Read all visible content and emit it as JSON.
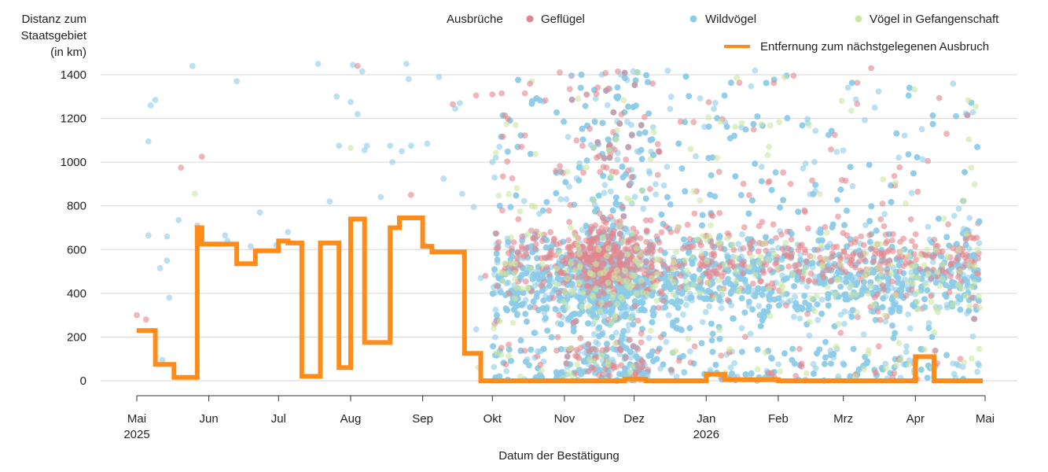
{
  "colors": {
    "gefluegel": "#e3868c",
    "wildvoegel": "#8ccbe8",
    "gefangenschaft": "#cbe6a0",
    "line": "#ff8c1a",
    "grid": "#d6d6d6",
    "axis": "#333333"
  },
  "legend": {
    "group_label": "Ausbrüche",
    "poultry": "Geflügel",
    "wild": "Wildvögel",
    "captive": "Vögel in Gefangenschaft",
    "line": "Entfernung zum nächstgelegenen Ausbruch"
  },
  "chart_data": {
    "type": "scatter",
    "ylabel": [
      "Distanz zum",
      "Staatsgebiet",
      "(in km)"
    ],
    "xlabel": "Datum der Bestätigung",
    "ylim": [
      0,
      1400
    ],
    "xlim": [
      "2025-05-01",
      "2026-05-01"
    ],
    "y_ticks": [
      "0",
      "200",
      "400",
      "600",
      "800",
      "1000",
      "1200",
      "1400"
    ],
    "x_ticks": [
      {
        "date": "2025-05-01",
        "label": "Mai",
        "year": "2025"
      },
      {
        "date": "2025-06-01",
        "label": "Jun",
        "year": ""
      },
      {
        "date": "2025-07-01",
        "label": "Jul",
        "year": ""
      },
      {
        "date": "2025-08-01",
        "label": "Aug",
        "year": ""
      },
      {
        "date": "2025-09-01",
        "label": "Sep",
        "year": ""
      },
      {
        "date": "2025-10-01",
        "label": "Okt",
        "year": ""
      },
      {
        "date": "2025-11-01",
        "label": "Nov",
        "year": ""
      },
      {
        "date": "2025-12-01",
        "label": "Dez",
        "year": ""
      },
      {
        "date": "2026-01-01",
        "label": "Jan",
        "year": "2026"
      },
      {
        "date": "2026-02-01",
        "label": "Feb",
        "year": ""
      },
      {
        "date": "2026-03-01",
        "label": "Mrz",
        "year": ""
      },
      {
        "date": "2026-04-01",
        "label": "Apr",
        "year": ""
      },
      {
        "date": "2026-05-01",
        "label": "Mai",
        "year": ""
      }
    ],
    "grid": true,
    "legend_position": "top",
    "line_series": {
      "name": "Entfernung zum nächstgelegenen Ausbruch",
      "points": [
        [
          "2025-05-01",
          230
        ],
        [
          "2025-05-09",
          230
        ],
        [
          "2025-05-09",
          75
        ],
        [
          "2025-05-17",
          75
        ],
        [
          "2025-05-17",
          15
        ],
        [
          "2025-05-27",
          15
        ],
        [
          "2025-05-27",
          700
        ],
        [
          "2025-05-29",
          700
        ],
        [
          "2025-05-29",
          625
        ],
        [
          "2025-06-13",
          625
        ],
        [
          "2025-06-13",
          535
        ],
        [
          "2025-06-21",
          535
        ],
        [
          "2025-06-21",
          595
        ],
        [
          "2025-07-01",
          595
        ],
        [
          "2025-07-01",
          640
        ],
        [
          "2025-07-05",
          640
        ],
        [
          "2025-07-05",
          630
        ],
        [
          "2025-07-11",
          630
        ],
        [
          "2025-07-11",
          20
        ],
        [
          "2025-07-19",
          20
        ],
        [
          "2025-07-19",
          630
        ],
        [
          "2025-07-27",
          630
        ],
        [
          "2025-07-27",
          60
        ],
        [
          "2025-08-01",
          60
        ],
        [
          "2025-08-01",
          740
        ],
        [
          "2025-08-07",
          740
        ],
        [
          "2025-08-07",
          175
        ],
        [
          "2025-08-18",
          175
        ],
        [
          "2025-08-18",
          700
        ],
        [
          "2025-08-22",
          700
        ],
        [
          "2025-08-22",
          745
        ],
        [
          "2025-09-01",
          745
        ],
        [
          "2025-09-01",
          615
        ],
        [
          "2025-09-05",
          615
        ],
        [
          "2025-09-05",
          590
        ],
        [
          "2025-09-19",
          590
        ],
        [
          "2025-09-19",
          125
        ],
        [
          "2025-09-26",
          125
        ],
        [
          "2025-09-26",
          0
        ],
        [
          "2025-11-27",
          0
        ],
        [
          "2025-11-27",
          8
        ],
        [
          "2025-12-06",
          8
        ],
        [
          "2025-12-06",
          0
        ],
        [
          "2026-01-01",
          0
        ],
        [
          "2026-01-01",
          30
        ],
        [
          "2026-01-09",
          30
        ],
        [
          "2026-01-09",
          5
        ],
        [
          "2026-02-01",
          5
        ],
        [
          "2026-02-01",
          0
        ],
        [
          "2026-04-01",
          0
        ],
        [
          "2026-04-01",
          110
        ],
        [
          "2026-04-09",
          110
        ],
        [
          "2026-04-09",
          0
        ],
        [
          "2026-04-30",
          0
        ]
      ]
    },
    "scatter_series": [
      {
        "name": "Wildvögel",
        "color_key": "wildvoegel",
        "count": 5200,
        "points": [
          [
            "2025-05-06",
            665
          ],
          [
            "2025-05-06",
            1095
          ],
          [
            "2025-05-07",
            1260
          ],
          [
            "2025-05-09",
            1285
          ],
          [
            "2025-05-11",
            515
          ],
          [
            "2025-05-12",
            95
          ],
          [
            "2025-05-14",
            660
          ],
          [
            "2025-05-14",
            550
          ],
          [
            "2025-05-15",
            380
          ],
          [
            "2025-05-19",
            735
          ],
          [
            "2025-05-25",
            1440
          ],
          [
            "2025-05-27",
            710
          ],
          [
            "2025-06-08",
            665
          ],
          [
            "2025-06-09",
            640
          ],
          [
            "2025-06-13",
            1370
          ],
          [
            "2025-06-19",
            615
          ],
          [
            "2025-06-23",
            770
          ],
          [
            "2025-06-30",
            620
          ],
          [
            "2025-07-05",
            680
          ],
          [
            "2025-07-18",
            1450
          ],
          [
            "2025-07-23",
            820
          ],
          [
            "2025-07-26",
            1300
          ],
          [
            "2025-07-27",
            1075
          ],
          [
            "2025-08-01",
            1275
          ],
          [
            "2025-08-02",
            1445
          ],
          [
            "2025-08-04",
            1220
          ],
          [
            "2025-08-06",
            1415
          ],
          [
            "2025-08-07",
            1055
          ],
          [
            "2025-08-08",
            1075
          ],
          [
            "2025-08-14",
            840
          ],
          [
            "2025-08-18",
            1075
          ],
          [
            "2025-08-19",
            1000
          ],
          [
            "2025-08-23",
            1050
          ],
          [
            "2025-08-25",
            1450
          ],
          [
            "2025-08-26",
            1380
          ],
          [
            "2025-08-27",
            1075
          ],
          [
            "2025-09-02",
            620
          ],
          [
            "2025-09-03",
            1085
          ],
          [
            "2025-09-08",
            1390
          ],
          [
            "2025-09-10",
            925
          ],
          [
            "2025-09-15",
            1245
          ],
          [
            "2025-09-17",
            1270
          ],
          [
            "2025-09-18",
            855
          ],
          [
            "2025-09-23",
            795
          ],
          [
            "2025-09-24",
            235
          ],
          [
            "2025-09-26",
            470
          ],
          [
            "2025-10-01",
            1000
          ],
          [
            "2025-10-02",
            930
          ],
          [
            "2025-10-04",
            1070
          ]
        ]
      },
      {
        "name": "Geflügel",
        "color_key": "gefluegel",
        "count": 900,
        "points": [
          [
            "2025-05-01",
            300
          ],
          [
            "2025-05-05",
            280
          ],
          [
            "2025-05-20",
            975
          ],
          [
            "2025-05-29",
            1025
          ],
          [
            "2025-08-04",
            1440
          ],
          [
            "2025-08-27",
            850
          ],
          [
            "2025-09-14",
            1265
          ],
          [
            "2025-09-24",
            1305
          ],
          [
            "2025-09-28",
            480
          ],
          [
            "2025-10-01",
            1310
          ],
          [
            "2025-10-02",
            260
          ],
          [
            "2025-10-05",
            1315
          ],
          [
            "2025-10-08",
            165
          ],
          [
            "2025-10-11",
            400
          ],
          [
            "2025-10-15",
            1315
          ],
          [
            "2025-10-30",
            1410
          ],
          [
            "2025-11-04",
            1395
          ],
          [
            "2025-11-24",
            1415
          ],
          [
            "2026-03-02",
            915
          ],
          [
            "2026-03-13",
            1430
          ],
          [
            "2026-04-02",
            865
          ],
          [
            "2026-04-04",
            330
          ],
          [
            "2026-04-28",
            720
          ],
          [
            "2026-04-28",
            560
          ],
          [
            "2026-04-28",
            490
          ],
          [
            "2026-04-27",
            340
          ]
        ]
      },
      {
        "name": "Vögel in Gefangenschaft",
        "color_key": "gefangenschaft",
        "count": 350,
        "points": [
          [
            "2025-05-26",
            855
          ],
          [
            "2025-08-01",
            1065
          ],
          [
            "2025-09-25",
            60
          ],
          [
            "2025-10-11",
            1170
          ],
          [
            "2025-10-18",
            1370
          ],
          [
            "2025-10-18",
            800
          ],
          [
            "2026-01-02",
            1205
          ],
          [
            "2026-01-28",
            1070
          ],
          [
            "2026-04-25",
            975
          ],
          [
            "2026-04-27",
            1255
          ]
        ]
      }
    ]
  }
}
